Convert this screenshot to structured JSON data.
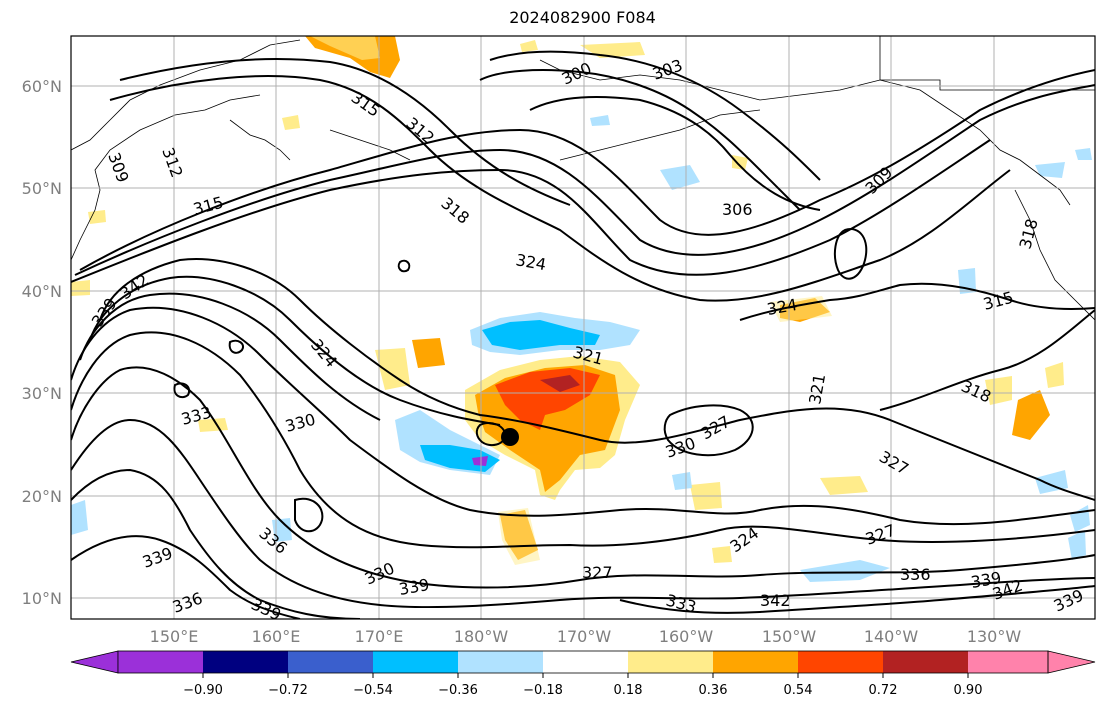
{
  "title": "2024082900 F084",
  "lat_labels": [
    "60°N",
    "50°N",
    "40°N",
    "30°N",
    "20°N",
    "10°N"
  ],
  "lon_labels": [
    "150°E",
    "160°E",
    "170°E",
    "180°W",
    "170°W",
    "160°W",
    "150°W",
    "140°W",
    "130°W"
  ],
  "contour_labels": [
    "300",
    "303",
    "306",
    "309",
    "309",
    "312",
    "312",
    "315",
    "315",
    "318",
    "318",
    "318",
    "321",
    "321",
    "324",
    "324",
    "324",
    "324",
    "327",
    "327",
    "327",
    "327",
    "330",
    "330",
    "330",
    "333",
    "333",
    "336",
    "336",
    "336",
    "339",
    "339",
    "339",
    "339",
    "339",
    "342",
    "342",
    "342",
    "321"
  ],
  "colorbar": {
    "tick_labels": [
      "−0.90",
      "−0.72",
      "−0.54",
      "−0.36",
      "−0.18",
      "0.18",
      "0.36",
      "0.54",
      "0.72",
      "0.90"
    ],
    "colors": [
      "#9b30d9",
      "#000080",
      "#3a5fcd",
      "#00bfff",
      "#b0e2ff",
      "#ffffff",
      "#ffec8b",
      "#ffa500",
      "#ff4500",
      "#b22222",
      "#ff82ab"
    ]
  },
  "marker": {
    "type": "storm-center",
    "color": "#000000"
  }
}
